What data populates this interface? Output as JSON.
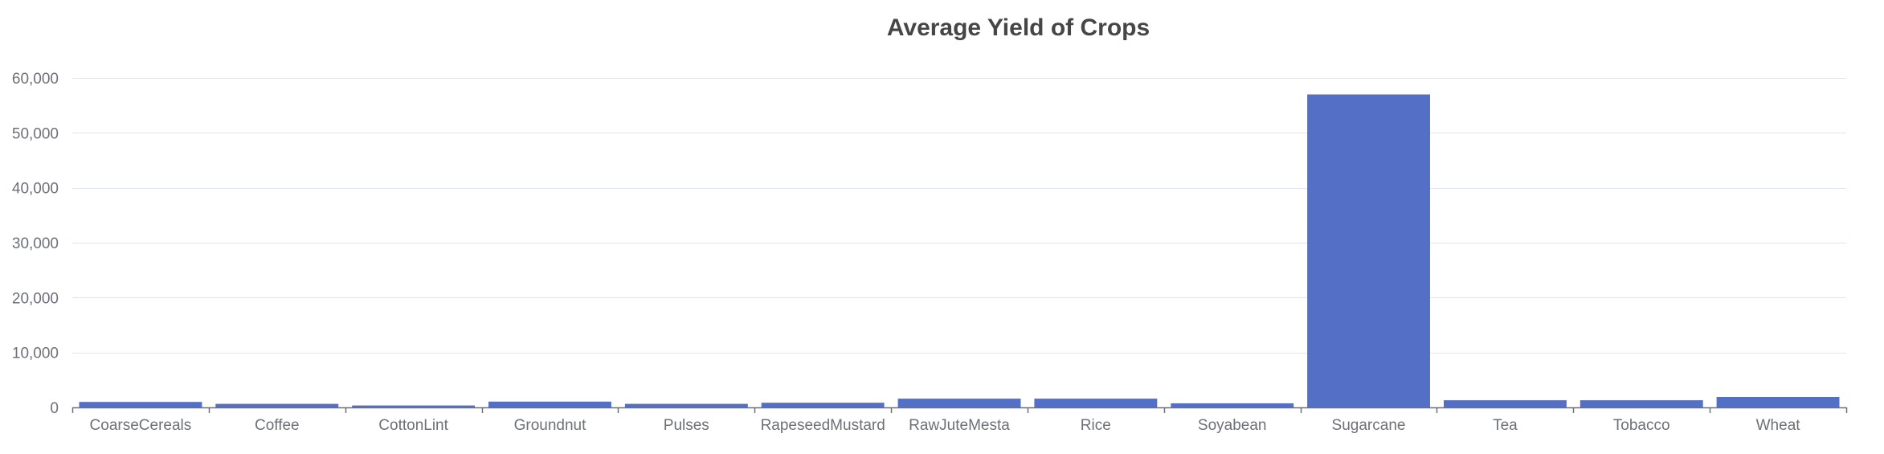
{
  "chart_data": {
    "type": "bar",
    "title": "Average Yield of Crops",
    "xlabel": "",
    "ylabel": "",
    "categories": [
      "CoarseCereals",
      "Coffee",
      "CottonLint",
      "Groundnut",
      "Pulses",
      "RapeseedMustard",
      "RawJuteMesta",
      "Rice",
      "Soyabean",
      "Sugarcane",
      "Tea",
      "Tobacco",
      "Wheat"
    ],
    "values": [
      1000,
      650,
      350,
      1050,
      650,
      850,
      1600,
      1600,
      750,
      57000,
      1300,
      1300,
      1900
    ],
    "ylim": [
      0,
      60000
    ],
    "yticks": [
      0,
      10000,
      20000,
      30000,
      40000,
      50000,
      60000
    ],
    "ytick_labels": [
      "0",
      "10,000",
      "20,000",
      "30,000",
      "40,000",
      "50,000",
      "60,000"
    ],
    "grid": true,
    "colors": {
      "bar": "#5470c6",
      "grid": "#e0e6f1",
      "axis": "#6e7079",
      "title": "#464646"
    }
  }
}
